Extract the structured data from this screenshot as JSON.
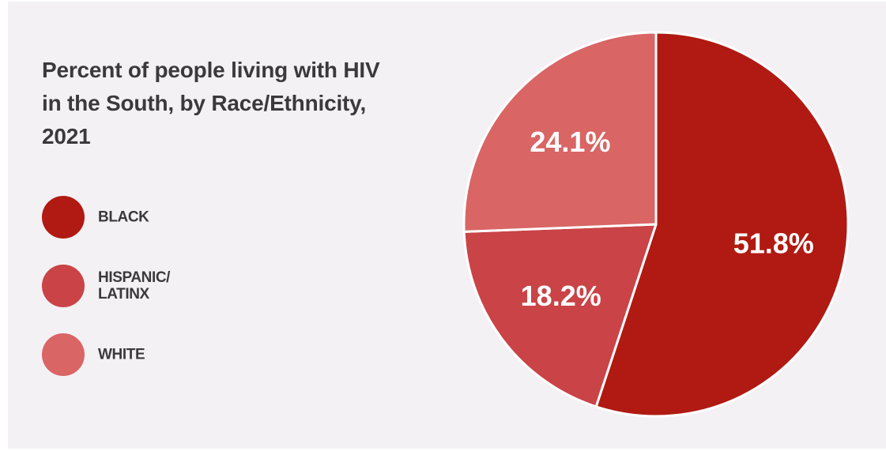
{
  "chart_data": {
    "type": "pie",
    "title": "Percent of people living with HIV\nin the South, by Race/Ethnicity,\n2021",
    "slices": [
      {
        "label": "BLACK",
        "value": 51.8,
        "display": "51.8%",
        "color": "#b01a12"
      },
      {
        "label": "HISPANIC/\nLATINX",
        "value": 18.2,
        "display": "18.2%",
        "color": "#c94347"
      },
      {
        "label": "WHITE",
        "value": 24.1,
        "display": "24.1%",
        "color": "#d96565"
      }
    ],
    "legend_position": "left",
    "start": "top",
    "direction": "clockwise"
  },
  "colors": {
    "background": "#f4f1f5",
    "text": "#3a3a3a",
    "slice_border": "#ffffff"
  }
}
